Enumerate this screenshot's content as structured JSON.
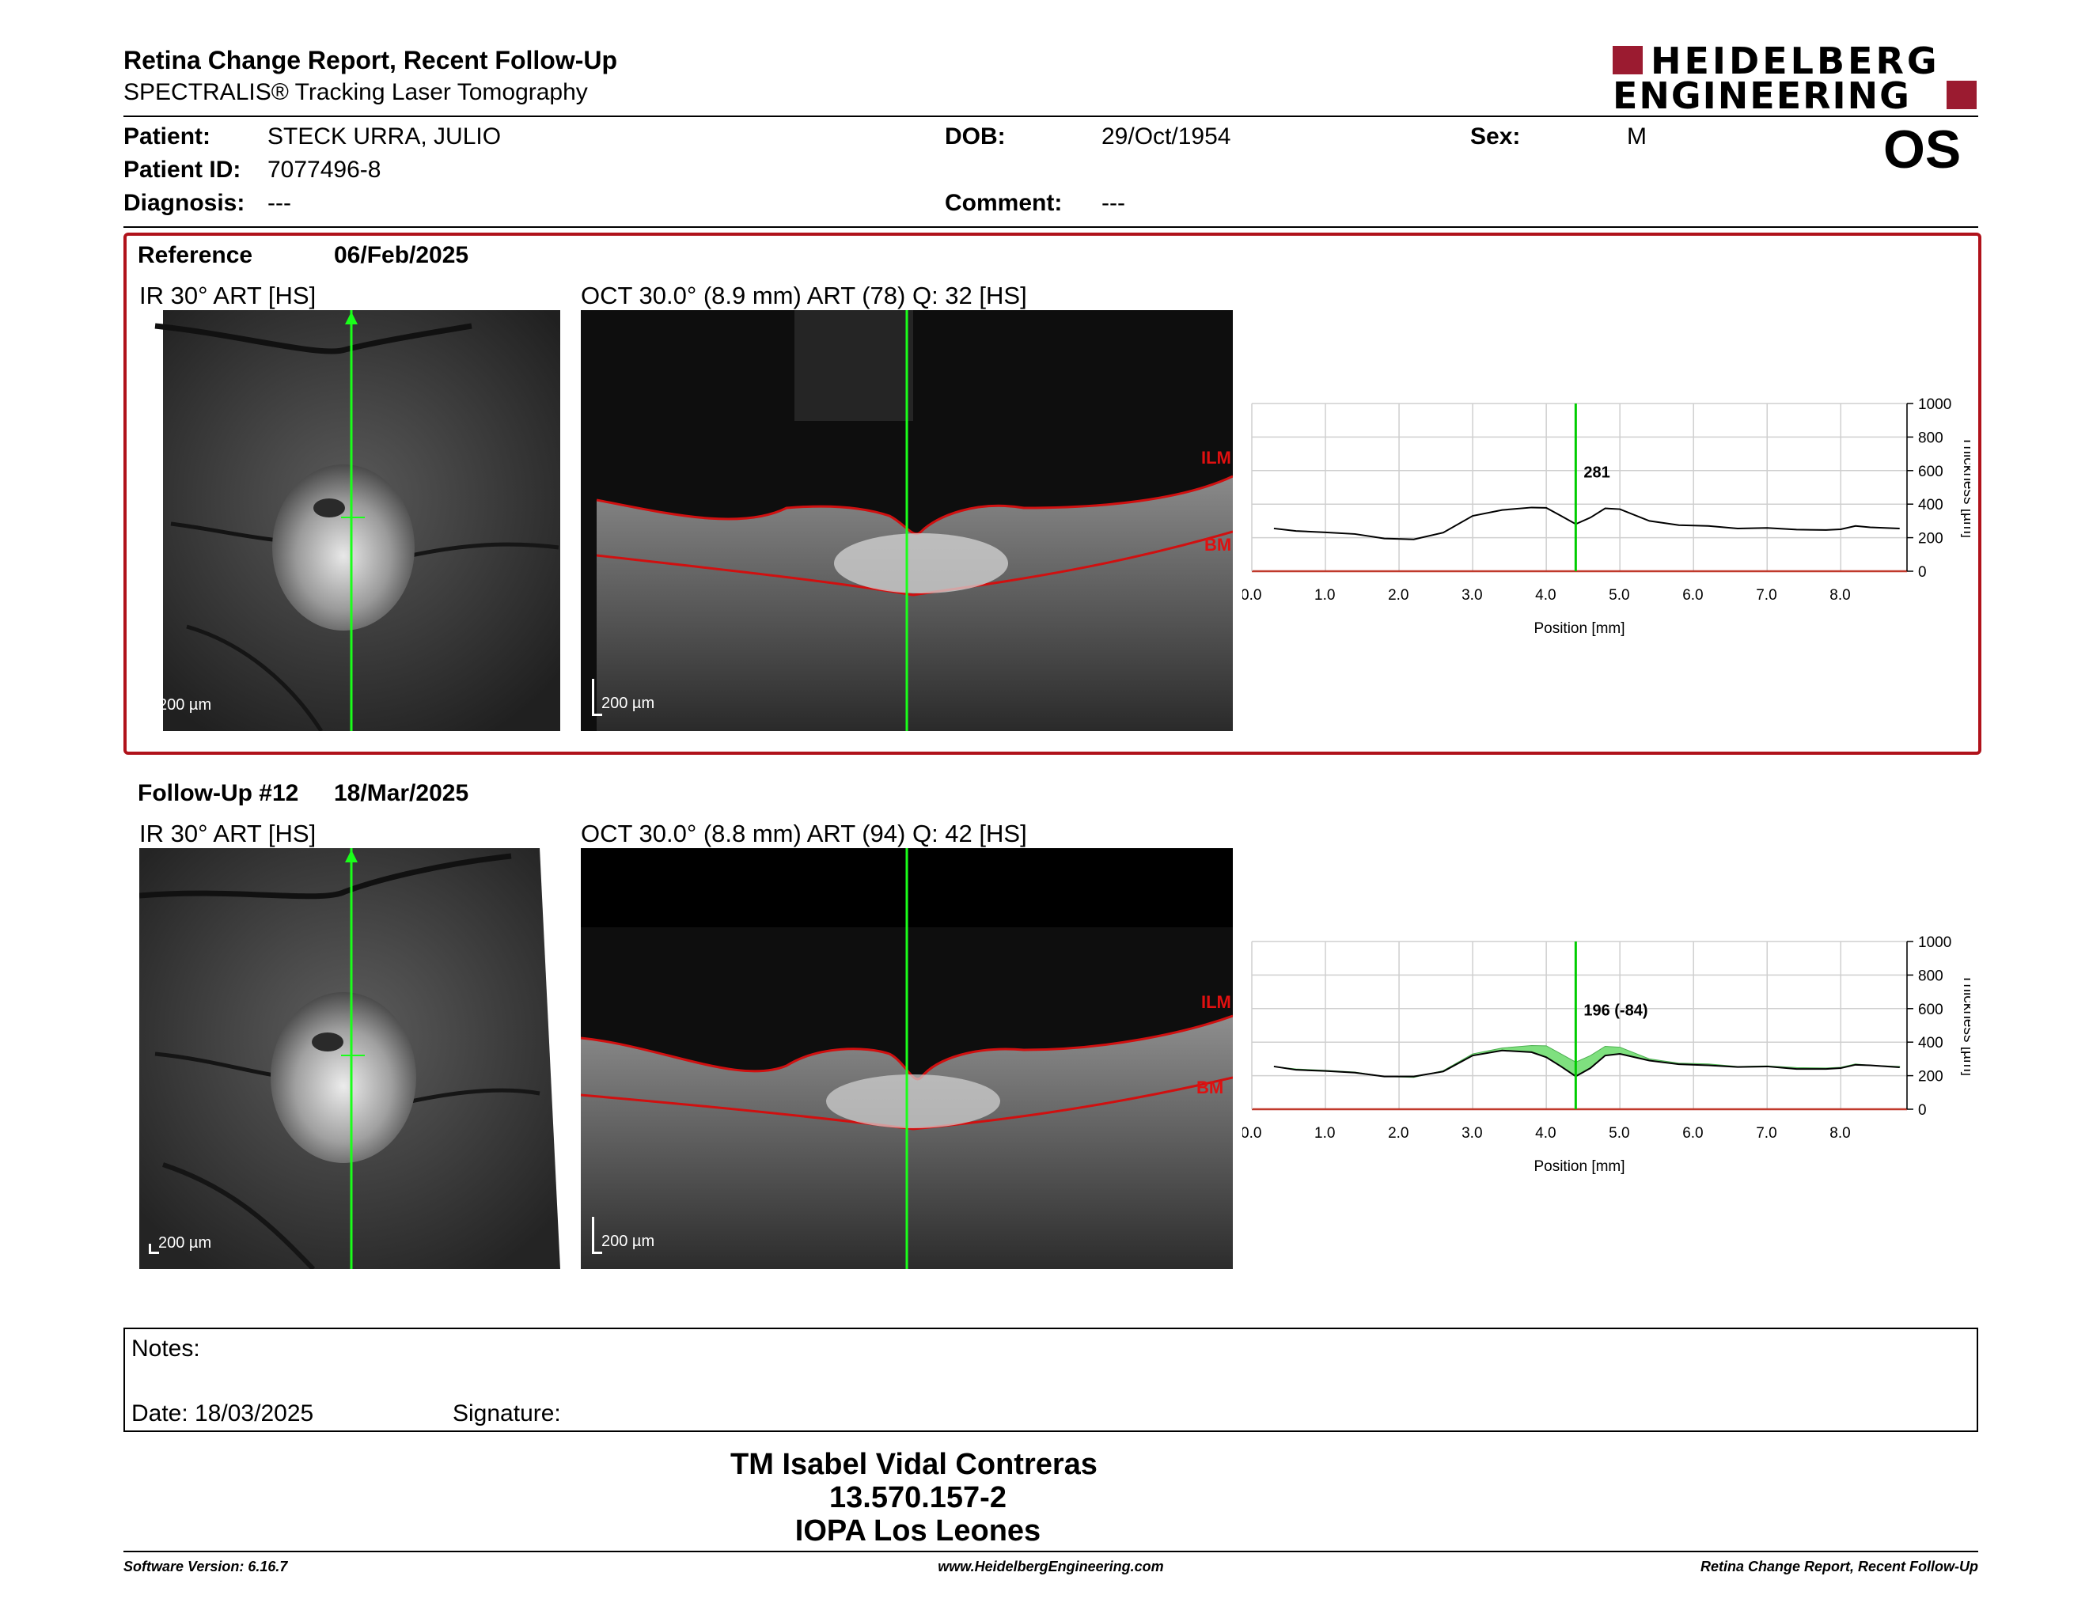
{
  "header": {
    "title": "Retina Change Report, Recent Follow-Up",
    "subtitle": "SPECTRALIS® Tracking Laser Tomography",
    "logo_line1": "HEIDELBERG",
    "logo_line2": "ENGINEERING",
    "eye": "OS"
  },
  "patient": {
    "patient_label": "Patient:",
    "patient_value": "STECK URRA, JULIO",
    "id_label": "Patient ID:",
    "id_value": "7077496-8",
    "diagnosis_label": "Diagnosis:",
    "diagnosis_value": "---",
    "dob_label": "DOB:",
    "dob_value": "29/Oct/1954",
    "comment_label": "Comment:",
    "comment_value": "---",
    "sex_label": "Sex:",
    "sex_value": "M"
  },
  "reference": {
    "label": "Reference",
    "date": "06/Feb/2025",
    "ir_caption": "IR 30° ART [HS]",
    "oct_caption": "OCT 30.0° (8.9 mm) ART (78) Q: 32 [HS]",
    "ir_scale": "200 µm",
    "oct_scale": "200 µm",
    "ilm_label": "ILM",
    "bm_label": "BM",
    "highlight_color": "#b0121b"
  },
  "followup": {
    "label": "Follow-Up #12",
    "date": "18/Mar/2025",
    "ir_caption": "IR 30° ART [HS]",
    "oct_caption": "OCT 30.0° (8.8 mm) ART (94) Q: 42 [HS]",
    "ir_scale": "200 µm",
    "oct_scale": "200 µm",
    "ilm_label": "ILM",
    "bm_label": "BM"
  },
  "chart_data": [
    {
      "type": "line",
      "xlabel": "Position [mm]",
      "ylabel": "Thickness [µm]",
      "xlim": [
        0,
        8.9
      ],
      "ylim": [
        0,
        1000
      ],
      "x_ticks": [
        "0.0",
        "1.0",
        "2.0",
        "3.0",
        "4.0",
        "5.0",
        "6.0",
        "7.0",
        "8.0"
      ],
      "y_ticks": [
        "0",
        "200",
        "400",
        "600",
        "800",
        "1000"
      ],
      "cursor_x": 4.4,
      "cursor_label": "281",
      "cursor_color": "#00cc00",
      "series": [
        {
          "x": [
            0.3,
            0.6,
            1.0,
            1.4,
            1.8,
            2.2,
            2.6,
            3.0,
            3.4,
            3.8,
            4.0,
            4.2,
            4.4,
            4.6,
            4.8,
            5.0,
            5.4,
            5.8,
            6.2,
            6.6,
            7.0,
            7.4,
            7.8,
            8.0,
            8.2,
            8.4,
            8.8
          ],
          "values": [
            255,
            240,
            232,
            222,
            195,
            190,
            230,
            330,
            365,
            380,
            378,
            330,
            281,
            320,
            375,
            370,
            300,
            275,
            270,
            255,
            258,
            248,
            246,
            250,
            270,
            262,
            255
          ]
        }
      ]
    },
    {
      "type": "line",
      "xlabel": "Position [mm]",
      "ylabel": "Thickness [µm]",
      "xlim": [
        0,
        8.9
      ],
      "ylim": [
        0,
        1000
      ],
      "x_ticks": [
        "0.0",
        "1.0",
        "2.0",
        "3.0",
        "4.0",
        "5.0",
        "6.0",
        "7.0",
        "8.0"
      ],
      "y_ticks": [
        "0",
        "200",
        "400",
        "600",
        "800",
        "1000"
      ],
      "cursor_x": 4.4,
      "cursor_label": "196 (-84)",
      "cursor_color": "#00cc00",
      "fill_color": "#7fe07f",
      "series": [
        {
          "x": [
            0.3,
            0.6,
            1.0,
            1.4,
            1.8,
            2.2,
            2.6,
            3.0,
            3.4,
            3.8,
            4.0,
            4.2,
            4.4,
            4.6,
            4.8,
            5.0,
            5.4,
            5.8,
            6.2,
            6.6,
            7.0,
            7.4,
            7.8,
            8.0,
            8.2,
            8.4,
            8.8
          ],
          "values": [
            255,
            235,
            228,
            218,
            195,
            195,
            225,
            320,
            350,
            340,
            310,
            255,
            196,
            245,
            320,
            330,
            290,
            268,
            262,
            252,
            255,
            240,
            240,
            245,
            265,
            262,
            250
          ]
        }
      ]
    }
  ],
  "notes": {
    "notes_label": "Notes:",
    "date_label": "Date: 18/03/2025",
    "signature_label": "Signature:"
  },
  "signer": {
    "name": "TM Isabel Vidal Contreras",
    "id": "13.570.157-2",
    "institution": "IOPA Los Leones"
  },
  "footer": {
    "software": "Software Version: 6.16.7",
    "website": "www.HeidelbergEngineering.com",
    "report_name": "Retina Change Report, Recent Follow-Up"
  }
}
